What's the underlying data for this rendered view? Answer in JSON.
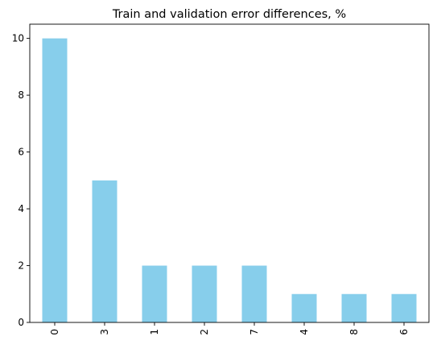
{
  "chart_data": {
    "type": "bar",
    "title": "Train and validation error differences, %",
    "xlabel": "",
    "ylabel": "",
    "categories": [
      "0",
      "3",
      "1",
      "2",
      "7",
      "4",
      "8",
      "6"
    ],
    "values": [
      10,
      5,
      2,
      2,
      2,
      1,
      1,
      1
    ],
    "ylim": [
      0,
      10.5
    ],
    "yticks": [
      0,
      2,
      4,
      6,
      8,
      10
    ],
    "x_tick_rotation": "vertical",
    "bar_color": "#87CEEB",
    "grid": false,
    "legend": "none"
  }
}
